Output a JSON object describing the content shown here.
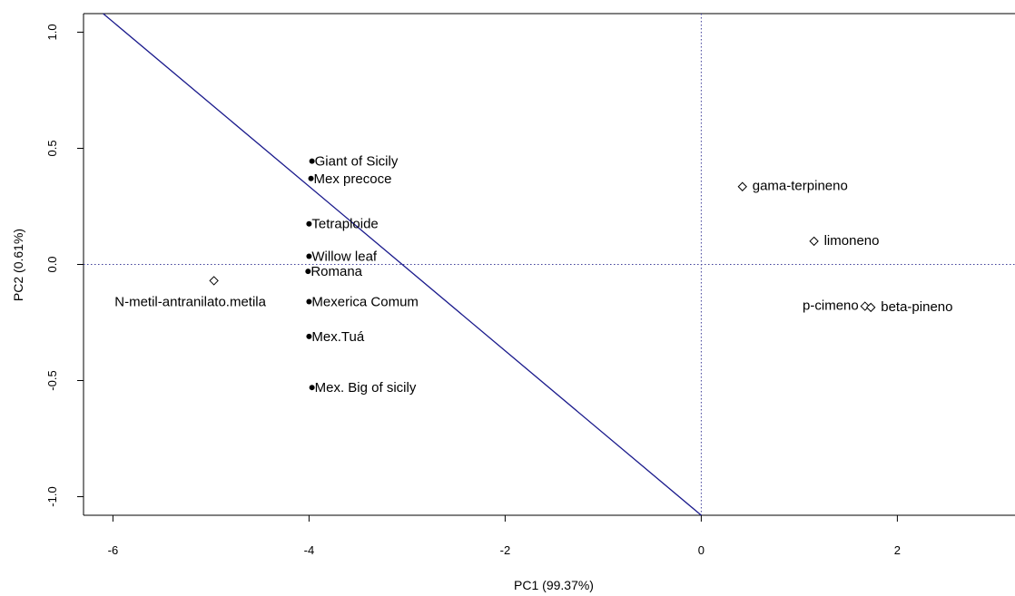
{
  "chart_data": {
    "type": "scatter",
    "title": "",
    "xlabel": "PC1 (99.37%)",
    "ylabel": "PC2 (0.61%)",
    "xlim": [
      -6.3,
      3.2
    ],
    "ylim": [
      -1.08,
      1.08
    ],
    "x_ticks": [
      -6,
      -4,
      -2,
      0,
      2
    ],
    "y_ticks": [
      -1.0,
      -0.5,
      0.0,
      0.5,
      1.0
    ],
    "x_tick_labels": [
      "-6",
      "-4",
      "-2",
      "0",
      "2"
    ],
    "y_tick_labels": [
      "-1.0",
      "-0.5",
      "0.0",
      "0.5",
      "1.0"
    ],
    "grid": false,
    "reference_lines": {
      "x": 0,
      "y": 0,
      "style": "dotted",
      "color": "#3f3f99"
    },
    "fit_line": {
      "from": [
        -6.1,
        1.08
      ],
      "to": [
        0.0,
        -1.08
      ],
      "color": "#1a1a8c"
    },
    "samples": [
      {
        "label": "Giant of Sicily",
        "x": -3.97,
        "y": 0.445
      },
      {
        "label": "Mex precoce",
        "x": -3.98,
        "y": 0.37
      },
      {
        "label": "Tetraploide",
        "x": -4.0,
        "y": 0.175
      },
      {
        "label": "Willow leaf",
        "x": -4.0,
        "y": 0.035
      },
      {
        "label": "Romana",
        "x": -4.01,
        "y": -0.03
      },
      {
        "label": "Mexerica Comum",
        "x": -4.0,
        "y": -0.16
      },
      {
        "label": "Mex.Tuá",
        "x": -4.0,
        "y": -0.31
      },
      {
        "label": "Mex. Big of sicily",
        "x": -3.97,
        "y": -0.53
      }
    ],
    "variables": [
      {
        "label": "N-metil-antranilato.metila",
        "x": -4.97,
        "y": -0.07,
        "label_position": "below-left"
      },
      {
        "label": "gama-terpineno",
        "x": 0.42,
        "y": 0.335,
        "label_position": "right"
      },
      {
        "label": "limoneno",
        "x": 1.15,
        "y": 0.1,
        "label_position": "right"
      },
      {
        "label": "p-cimeno",
        "x": 1.67,
        "y": -0.18,
        "label_position": "left"
      },
      {
        "label": "beta-pineno",
        "x": 1.73,
        "y": -0.185,
        "label_position": "right"
      }
    ]
  }
}
